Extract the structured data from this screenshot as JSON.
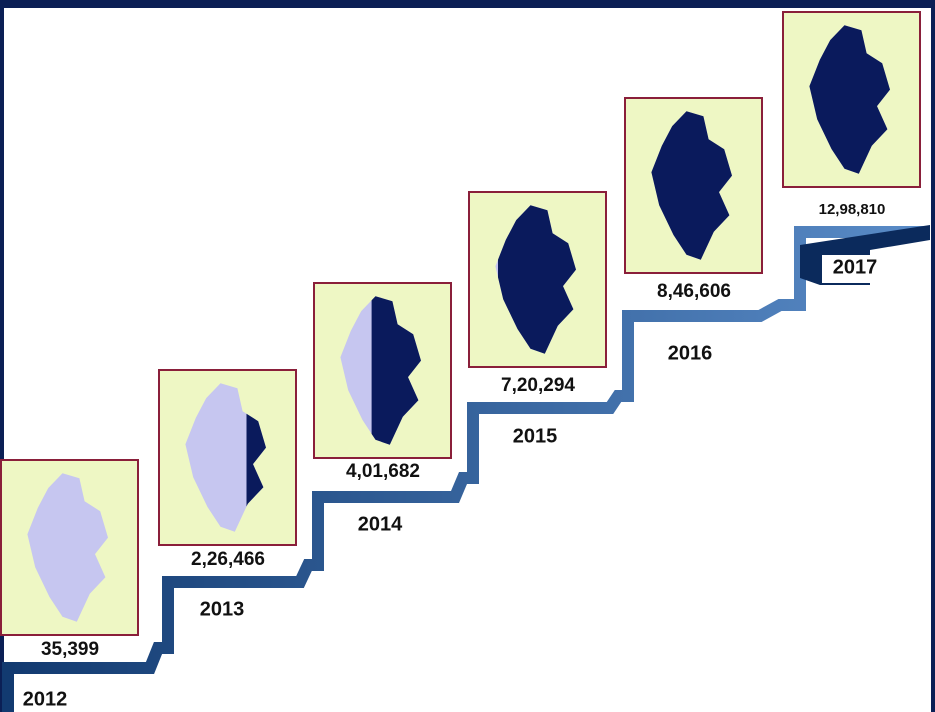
{
  "steps": [
    {
      "year": "2012",
      "count": "35,399"
    },
    {
      "year": "2013",
      "count": "2,26,466"
    },
    {
      "year": "2014",
      "count": "4,01,682"
    },
    {
      "year": "2015",
      "count": "7,20,294"
    },
    {
      "year": "2016",
      "count": "8,46,606"
    },
    {
      "year": "2017",
      "count": "12,98,810"
    }
  ]
}
